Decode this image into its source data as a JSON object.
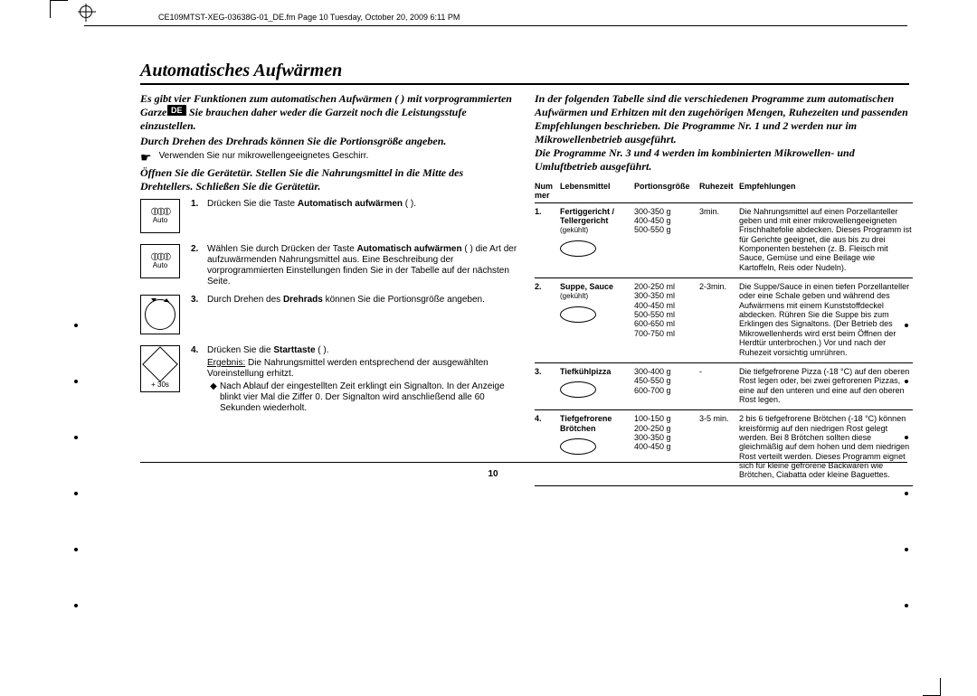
{
  "header": "CE109MTST-XEG-03638G-01_DE.fm  Page 10  Tuesday, October 20, 2009  6:11 PM",
  "lang_badge": "DE",
  "title": "Automatisches Aufwärmen",
  "page_number": "10",
  "left": {
    "intro1": "Es gibt vier Funktionen zum automatischen Aufwärmen (        ) mit vorprogrammierten Garzeiten. Sie brauchen daher weder die Garzeit noch die Leistungsstufe einzustellen.",
    "intro2": "Durch Drehen des Drehrads können Sie die Portionsgröße angeben.",
    "note": "Verwenden Sie nur mikrowellengeeignetes Geschirr.",
    "intro3": "Öffnen Sie die Gerätetür. Stellen Sie die Nahrungsmittel in die Mitte des Drehtellers. Schließen Sie die Gerätetür.",
    "auto_label": "Auto",
    "plus30": "+ 30s",
    "steps": [
      {
        "n": "1.",
        "text_a": "Drücken Sie die Taste ",
        "b": "Automatisch aufwärmen",
        "text_b": " (        )."
      },
      {
        "n": "2.",
        "text_a": "Wählen Sie durch Drücken der Taste ",
        "b": "Automatisch aufwärmen",
        "text_b": " (        ) die Art der aufzuwärmenden Nahrungsmittel aus. Eine Beschreibung der vorprogrammierten Einstellungen finden Sie in der Tabelle auf der nächsten Seite."
      },
      {
        "n": "3.",
        "text_a": "Durch Drehen des ",
        "b": "Drehrads",
        "text_b": " können Sie die Portionsgröße angeben."
      },
      {
        "n": "4.",
        "text_a": "Drücken Sie die ",
        "b": "Starttaste",
        "text_b": " (        ).",
        "result_label": "Ergebnis:",
        "result": "Die Nahrungsmittel werden entsprechend der ausgewählten Voreinstellung erhitzt.",
        "bullet": "Nach Ablauf der eingestellten Zeit erklingt ein Signalton. In der Anzeige blinkt vier Mal die Ziffer 0. Der Signalton wird anschließend alle 60 Sekunden wiederholt."
      }
    ]
  },
  "right": {
    "intro": "In der folgenden Tabelle sind die verschiedenen Programme zum automatischen Aufwärmen und Erhitzen mit den zugehörigen Mengen, Ruhezeiten und passenden Empfehlungen beschrieben. Die Programme Nr. 1 und 2 werden nur im Mikrowellenbetrieb ausgeführt.",
    "intro2": "Die Programme Nr. 3 und 4 werden im kombinierten Mikrowellen- und Umluftbetrieb ausgeführt.",
    "th": {
      "c1": "Num mer",
      "c2": "Lebensmittel",
      "c3": "Portionsgröße",
      "c4": "Ruhezeit",
      "c5": "Empfehlungen"
    },
    "rows": [
      {
        "n": "1.",
        "food": "Fertiggericht / Tellergericht",
        "food_sub": "(gekühlt)",
        "size": "300-350 g\n400-450 g\n500-550 g",
        "rest": "3min.",
        "rec": "Die Nahrungsmittel auf einen Porzellanteller geben und mit einer mikrowellengeeigneten Frischhaltefolie abdecken. Dieses Programm ist für Gerichte geeignet, die aus bis zu drei Komponenten bestehen (z. B. Fleisch mit Sauce, Gemüse und eine Beilage wie Kartoffeln, Reis oder Nudeln)."
      },
      {
        "n": "2.",
        "food": "Suppe, Sauce",
        "food_sub": "(gekühlt)",
        "size": "200-250 ml\n300-350 ml\n400-450 ml\n500-550 ml\n600-650 ml\n700-750 ml",
        "rest": "2-3min.",
        "rec": "Die Suppe/Sauce in einen tiefen Porzellanteller oder eine Schale geben und während des Aufwärmens mit einem Kunststoffdeckel abdecken. Rühren Sie die Suppe bis zum Erklingen des Signaltons. (Der Betrieb des Mikrowellenherds wird erst beim Öffnen der Herdtür unterbrochen.) Vor und nach der Ruhezeit vorsichtig umrühren."
      },
      {
        "n": "3.",
        "food": "Tiefkühlpizza",
        "food_sub": "",
        "size": "300-400 g\n450-550 g\n600-700 g",
        "rest": "-",
        "rec": "Die tiefgefrorene Pizza (-18 °C) auf den oberen Rost legen oder, bei zwei gefrorenen Pizzas, eine auf den unteren und eine auf den oberen Rost legen."
      },
      {
        "n": "4.",
        "food": "Tiefgefrorene Brötchen",
        "food_sub": "",
        "size": "100-150 g\n200-250 g\n300-350 g\n400-450 g",
        "rest": "3-5 min.",
        "rec": "2 bis 6 tiefgefrorene Brötchen (-18 °C) können kreisförmig auf den niedrigen Rost gelegt werden. Bei 8 Brötchen sollten diese gleichmäßig auf dem hohen und dem niedrigen Rost verteilt werden. Dieses Programm eignet sich für kleine gefrorene Backwaren wie Brötchen, Ciabatta oder kleine Baguettes."
      }
    ]
  }
}
